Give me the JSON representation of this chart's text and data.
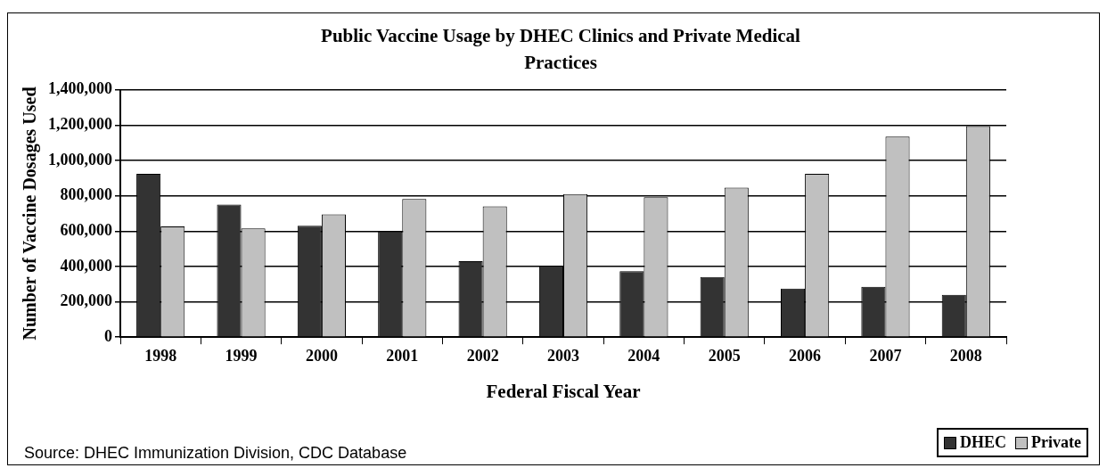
{
  "chart_data": {
    "type": "bar",
    "title": "Public Vaccine Usage by DHEC Clinics and Private Medical Practices",
    "xlabel": "Federal Fiscal Year",
    "ylabel": "Number of Vaccine Dosages Used",
    "categories": [
      "1998",
      "1999",
      "2000",
      "2001",
      "2002",
      "2003",
      "2004",
      "2005",
      "2006",
      "2007",
      "2008"
    ],
    "series": [
      {
        "name": "DHEC",
        "color": "#333333",
        "values": [
          925000,
          750000,
          630000,
          598000,
          430000,
          405000,
          373000,
          340000,
          275000,
          285000,
          240000
        ]
      },
      {
        "name": "Private",
        "color": "#c0c0c0",
        "values": [
          627000,
          616000,
          695000,
          782000,
          740000,
          810000,
          792000,
          846000,
          925000,
          1135000,
          1195000
        ]
      }
    ],
    "ylim": [
      0,
      1400000
    ],
    "yticks": [
      0,
      {
        "value": 200000,
        "label": "200,000"
      },
      {
        "value": 400000,
        "label": "400,000"
      },
      {
        "value": 600000,
        "label": "600,000"
      },
      {
        "value": 800000,
        "label": "800,000"
      },
      {
        "value": 1000000,
        "label": "1,000,000"
      },
      {
        "value": 1200000,
        "label": "1,200,000"
      },
      {
        "value": 1400000,
        "label": "1,400,000"
      }
    ],
    "grid": "y",
    "legend": "bottom right",
    "annotations": [
      "Source: DHEC Immunization Division, CDC Database"
    ]
  }
}
